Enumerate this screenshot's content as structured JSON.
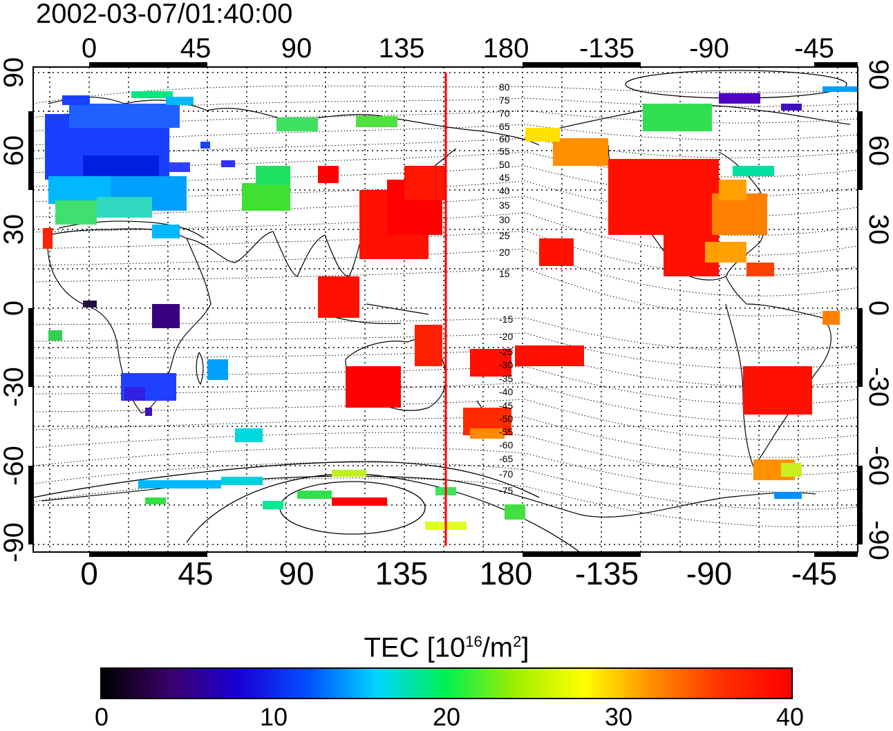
{
  "timestamp": "2002-03-07/01:40:00",
  "map": {
    "lon_ticks": [
      "0",
      "45",
      "90",
      "135",
      "180",
      "-135",
      "-90",
      "-45"
    ],
    "lat_ticks": [
      "90",
      "60",
      "30",
      "0",
      "-30",
      "-60",
      "-90"
    ],
    "contour_labels_north": [
      "80",
      "75",
      "70",
      "65",
      "60",
      "55",
      "50",
      "45",
      "40",
      "35",
      "30",
      "25",
      "20",
      "15"
    ],
    "contour_labels_south": [
      "-15",
      "-20",
      "-25",
      "-30",
      "-35",
      "-40",
      "-45",
      "-50",
      "-55",
      "-60",
      "-65",
      "-70",
      "-75"
    ],
    "terminator_color": "#ff0000"
  },
  "colorbar": {
    "title_prefix": "TEC  [10",
    "title_exp1": "16",
    "title_mid": "/m",
    "title_exp2": "2",
    "title_suffix": "]",
    "ticks": [
      "0",
      "10",
      "20",
      "30",
      "40"
    ],
    "range": [
      0,
      40
    ]
  }
}
